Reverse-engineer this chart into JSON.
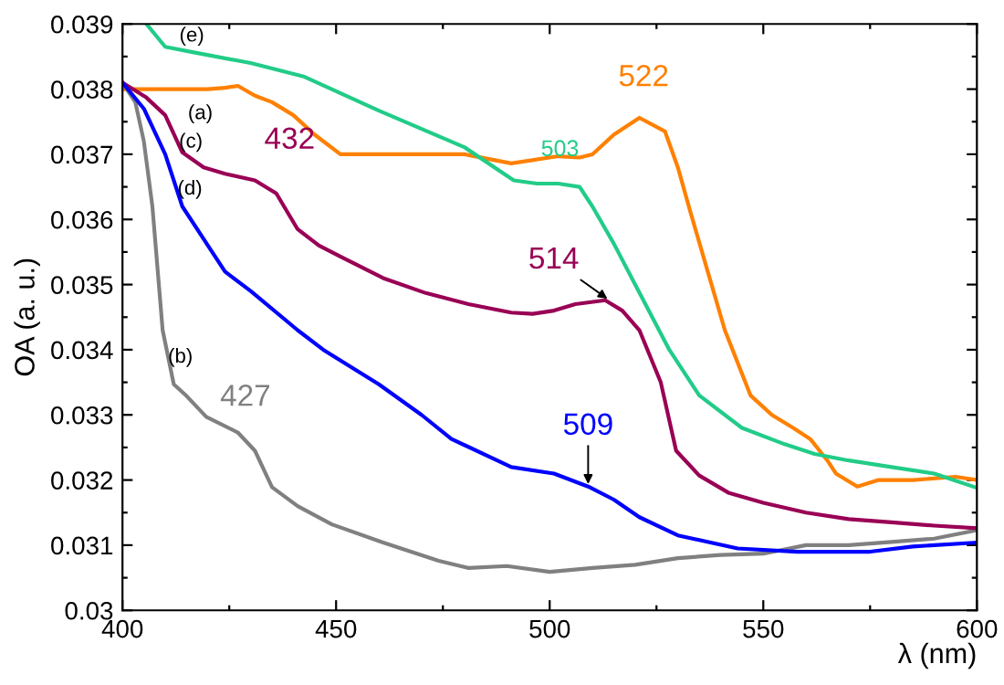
{
  "chart_data": {
    "type": "line",
    "xlabel": "λ (nm)",
    "ylabel": "OA (a. u.)",
    "xlim": [
      400,
      600
    ],
    "xticks": [
      400,
      {
        "value": 425,
        "label": null
      },
      450,
      {
        "value": 475,
        "label": null
      },
      500,
      {
        "value": 525,
        "label": null
      },
      550,
      {
        "value": 575,
        "label": null
      },
      600
    ],
    "ylim": [
      0.03,
      0.039
    ],
    "yticks": [
      0.03,
      {
        "value": 0.0305,
        "label": null
      },
      0.031,
      {
        "value": 0.0315,
        "label": null
      },
      0.032,
      {
        "value": 0.0325,
        "label": null
      },
      0.033,
      {
        "value": 0.0335,
        "label": null
      },
      0.034,
      {
        "value": 0.0345,
        "label": null
      },
      0.035,
      {
        "value": 0.0355,
        "label": null
      },
      0.036,
      {
        "value": 0.0365,
        "label": null
      },
      0.037,
      {
        "value": 0.0375,
        "label": null
      },
      0.038,
      {
        "value": 0.0385,
        "label": null
      },
      0.039
    ],
    "grid": false,
    "legend": false,
    "marker": "none",
    "line_style": "solid",
    "series": [
      {
        "color": "#ff8000",
        "x": [
          400,
          410,
          420,
          424,
          427,
          431,
          435,
          440,
          445,
          451,
          460,
          470,
          480,
          491,
          502,
          507,
          510,
          515,
          521,
          527,
          530,
          533,
          537,
          541,
          547,
          552,
          557,
          561,
          565,
          567,
          572,
          577,
          585,
          595,
          600
        ],
        "values": [
          0.038,
          0.038,
          0.038,
          0.03802,
          0.03805,
          0.0379,
          0.0378,
          0.0376,
          0.0373,
          0.037,
          0.037,
          0.037,
          0.037,
          0.03686,
          0.03697,
          0.03695,
          0.037,
          0.0373,
          0.03756,
          0.03735,
          0.0368,
          0.0361,
          0.0352,
          0.0343,
          0.0333,
          0.033,
          0.0328,
          0.03263,
          0.0323,
          0.0321,
          0.0319,
          0.032,
          0.032,
          0.03205,
          0.032
        ]
      },
      {
        "color": "#808080",
        "x": [
          400,
          403,
          405,
          407,
          409.4,
          412,
          415,
          419.6,
          427,
          431,
          435,
          441,
          449,
          461,
          474,
          481,
          490,
          500,
          510,
          520,
          530,
          540,
          550,
          560,
          570,
          580,
          590,
          600
        ],
        "values": [
          0.0381,
          0.0378,
          0.0372,
          0.0362,
          0.0343,
          0.03347,
          0.03329,
          0.03297,
          0.03273,
          0.03245,
          0.03189,
          0.0316,
          0.03132,
          0.03104,
          0.03076,
          0.03065,
          0.03068,
          0.03059,
          0.03065,
          0.0307,
          0.0308,
          0.03085,
          0.03087,
          0.031,
          0.031,
          0.03105,
          0.0311,
          0.03123
        ]
      },
      {
        "color": "#990055",
        "x": [
          400,
          405.6,
          410,
          414,
          419,
          424,
          431,
          436,
          441,
          446,
          451,
          461,
          471,
          481,
          491,
          496,
          501,
          506,
          513,
          517,
          521,
          526,
          529.6,
          535,
          542,
          550,
          560,
          570,
          580,
          590,
          600
        ],
        "values": [
          0.0381,
          0.03787,
          0.0376,
          0.03703,
          0.0368,
          0.0367,
          0.0366,
          0.0364,
          0.03585,
          0.0356,
          0.03543,
          0.0351,
          0.03487,
          0.0347,
          0.03457,
          0.03455,
          0.0346,
          0.0347,
          0.03476,
          0.0346,
          0.0343,
          0.0335,
          0.03245,
          0.03207,
          0.0318,
          0.03165,
          0.0315,
          0.0314,
          0.03135,
          0.0313,
          0.03126
        ]
      },
      {
        "color": "#0000ff",
        "x": [
          400,
          405,
          410,
          414,
          420,
          424,
          430,
          441,
          447,
          460,
          470,
          477,
          491,
          501,
          509,
          515,
          521,
          530,
          544,
          558,
          575,
          585,
          600
        ],
        "values": [
          0.0381,
          0.0377,
          0.037,
          0.0362,
          0.0356,
          0.0352,
          0.0349,
          0.0343,
          0.034,
          0.03347,
          0.033,
          0.03263,
          0.0322,
          0.0321,
          0.0319,
          0.0317,
          0.03143,
          0.03115,
          0.03095,
          0.0309,
          0.0309,
          0.03098,
          0.03104
        ]
      },
      {
        "color": "#22cc88",
        "x": [
          405.6,
          410,
          417,
          430,
          442.6,
          460,
          480,
          491.6,
          497,
          502,
          507,
          510,
          515,
          520,
          528,
          535,
          545,
          555,
          562,
          570,
          580,
          590,
          600
        ],
        "values": [
          0.039,
          0.03865,
          0.03856,
          0.0384,
          0.03819,
          0.03767,
          0.03711,
          0.0366,
          0.03655,
          0.03655,
          0.0365,
          0.0362,
          0.03563,
          0.035,
          0.034,
          0.0333,
          0.0328,
          0.03255,
          0.0324,
          0.0323,
          0.0322,
          0.0321,
          0.03188
        ]
      }
    ],
    "annotations": [
      {
        "text": "(e)",
        "x": 418,
        "y": 0.03855
      },
      {
        "text": "(a)",
        "x": 420,
        "y": 0.038
      },
      {
        "text": "(c)",
        "x": 416,
        "y": 0.037
      },
      {
        "text": "(d)",
        "x": 414,
        "y": 0.0362
      },
      {
        "text": "(b)",
        "x": 410,
        "y": 0.0343
      },
      {
        "text": "432",
        "x": 432,
        "y": 0.0366
      },
      {
        "text": "522",
        "x": 522,
        "y": 0.03756
      },
      {
        "text": "503",
        "x": 503,
        "y": 0.03655
      },
      {
        "text": "514",
        "x": 514,
        "y": 0.03476
      },
      {
        "text": "509",
        "x": 509,
        "y": 0.0319
      },
      {
        "text": "427",
        "x": 427,
        "y": 0.03273
      }
    ]
  }
}
